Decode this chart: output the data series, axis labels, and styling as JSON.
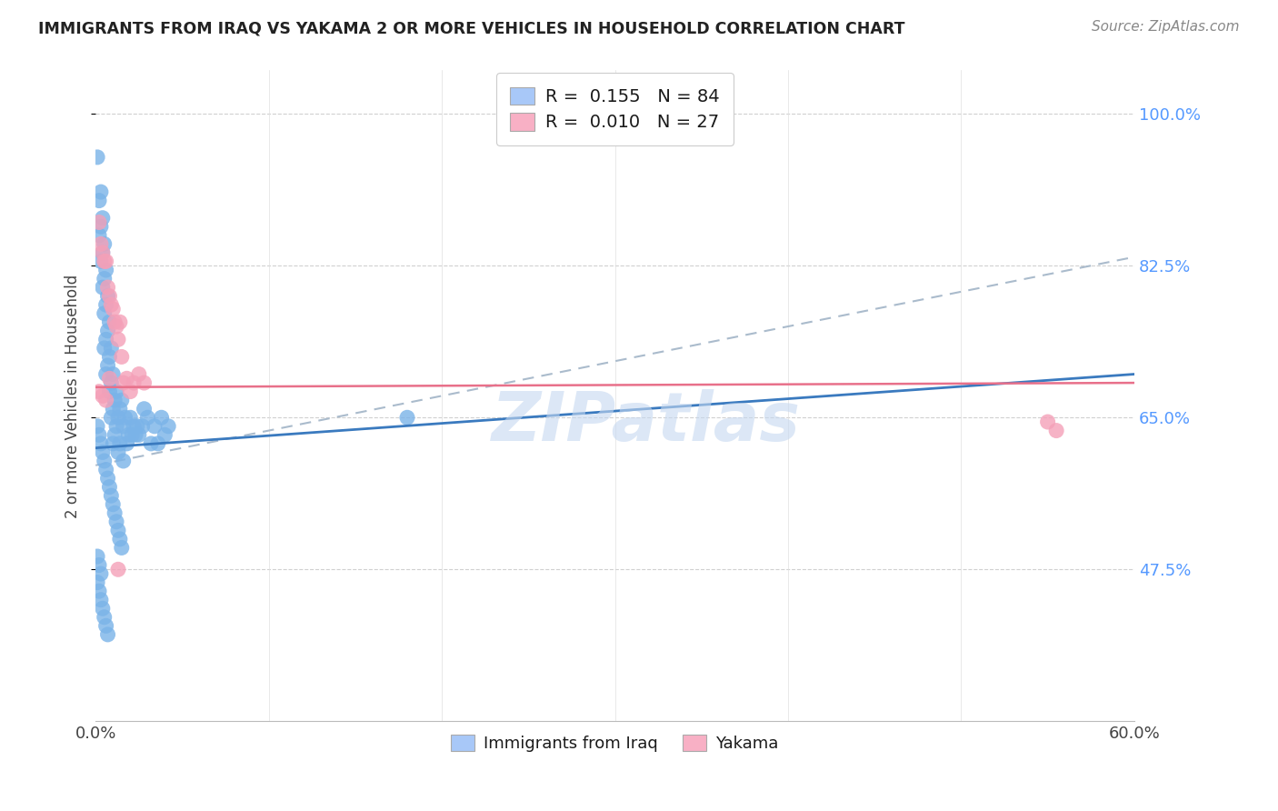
{
  "title": "IMMIGRANTS FROM IRAQ VS YAKAMA 2 OR MORE VEHICLES IN HOUSEHOLD CORRELATION CHART",
  "source": "Source: ZipAtlas.com",
  "ylabel": "2 or more Vehicles in Household",
  "ytick_labels": [
    "100.0%",
    "82.5%",
    "65.0%",
    "47.5%"
  ],
  "ytick_values": [
    1.0,
    0.825,
    0.65,
    0.475
  ],
  "xlim": [
    0.0,
    0.6
  ],
  "ylim": [
    0.3,
    1.05
  ],
  "legend_label1": "Immigrants from Iraq",
  "legend_label2": "Yakama",
  "legend_color1": "#a8c8f8",
  "legend_color2": "#f8b0c5",
  "watermark": "ZIPatlas",
  "iraq_color": "#7ab3e8",
  "yakama_color": "#f4a0b8",
  "iraq_line_color": "#3a7abf",
  "yakama_line_color": "#e8708a",
  "dashed_line_color": "#aabbcc",
  "iraq_r": 0.155,
  "yakama_r": 0.01,
  "iraq_n": 84,
  "yakama_n": 27,
  "iraq_line_x0": 0.0,
  "iraq_line_y0": 0.615,
  "iraq_line_x1": 0.6,
  "iraq_line_y1": 0.7,
  "yakama_line_x0": 0.0,
  "yakama_line_y0": 0.685,
  "yakama_line_x1": 0.6,
  "yakama_line_y1": 0.69,
  "dash_line_x0": 0.0,
  "dash_line_y0": 0.595,
  "dash_line_x1": 0.6,
  "dash_line_y1": 0.835,
  "iraq_x": [
    0.001,
    0.002,
    0.002,
    0.003,
    0.003,
    0.003,
    0.004,
    0.004,
    0.004,
    0.005,
    0.005,
    0.005,
    0.005,
    0.006,
    0.006,
    0.006,
    0.006,
    0.007,
    0.007,
    0.007,
    0.008,
    0.008,
    0.008,
    0.009,
    0.009,
    0.009,
    0.01,
    0.01,
    0.01,
    0.011,
    0.011,
    0.012,
    0.012,
    0.013,
    0.013,
    0.014,
    0.014,
    0.015,
    0.016,
    0.016,
    0.017,
    0.018,
    0.019,
    0.02,
    0.021,
    0.022,
    0.023,
    0.024,
    0.025,
    0.027,
    0.028,
    0.03,
    0.032,
    0.034,
    0.036,
    0.038,
    0.04,
    0.042,
    0.001,
    0.002,
    0.003,
    0.004,
    0.005,
    0.006,
    0.007,
    0.008,
    0.009,
    0.01,
    0.011,
    0.012,
    0.013,
    0.014,
    0.015,
    0.001,
    0.002,
    0.003,
    0.18,
    0.001,
    0.002,
    0.003,
    0.004,
    0.005,
    0.006,
    0.007
  ],
  "iraq_y": [
    0.95,
    0.9,
    0.86,
    0.91,
    0.87,
    0.83,
    0.88,
    0.84,
    0.8,
    0.85,
    0.81,
    0.77,
    0.73,
    0.82,
    0.78,
    0.74,
    0.7,
    0.79,
    0.75,
    0.71,
    0.76,
    0.72,
    0.68,
    0.73,
    0.69,
    0.65,
    0.7,
    0.66,
    0.62,
    0.67,
    0.63,
    0.68,
    0.64,
    0.65,
    0.61,
    0.66,
    0.62,
    0.67,
    0.64,
    0.6,
    0.65,
    0.62,
    0.63,
    0.65,
    0.63,
    0.64,
    0.63,
    0.64,
    0.63,
    0.64,
    0.66,
    0.65,
    0.62,
    0.64,
    0.62,
    0.65,
    0.63,
    0.64,
    0.64,
    0.63,
    0.62,
    0.61,
    0.6,
    0.59,
    0.58,
    0.57,
    0.56,
    0.55,
    0.54,
    0.53,
    0.52,
    0.51,
    0.5,
    0.49,
    0.48,
    0.47,
    0.65,
    0.46,
    0.45,
    0.44,
    0.43,
    0.42,
    0.41,
    0.4
  ],
  "yakama_x": [
    0.002,
    0.003,
    0.004,
    0.005,
    0.006,
    0.007,
    0.008,
    0.009,
    0.01,
    0.011,
    0.012,
    0.013,
    0.014,
    0.015,
    0.016,
    0.018,
    0.02,
    0.022,
    0.025,
    0.028,
    0.002,
    0.004,
    0.006,
    0.008,
    0.013,
    0.55,
    0.555
  ],
  "yakama_y": [
    0.875,
    0.85,
    0.84,
    0.83,
    0.83,
    0.8,
    0.79,
    0.78,
    0.775,
    0.76,
    0.755,
    0.74,
    0.76,
    0.72,
    0.69,
    0.695,
    0.68,
    0.69,
    0.7,
    0.69,
    0.68,
    0.675,
    0.67,
    0.695,
    0.475,
    0.645,
    0.635
  ]
}
